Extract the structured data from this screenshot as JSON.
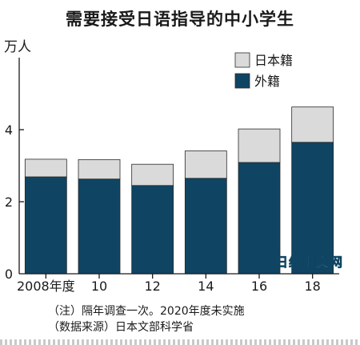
{
  "chart_data": {
    "type": "bar",
    "stacked": true,
    "title": "需要接受日语指导的中小学生",
    "ylabel": "万人",
    "xlabel": "",
    "ylim": [
      0,
      6
    ],
    "yticks": [
      0,
      2,
      4
    ],
    "categories": [
      "2008年度",
      "10",
      "12",
      "14",
      "16",
      "18"
    ],
    "series": [
      {
        "name": "外籍",
        "color": "#0f4563",
        "values": [
          2.69,
          2.63,
          2.45,
          2.65,
          3.09,
          3.65
        ]
      },
      {
        "name": "日本籍",
        "color": "#dadada",
        "values": [
          0.49,
          0.54,
          0.59,
          0.76,
          0.93,
          0.98
        ]
      }
    ],
    "legend": {
      "placement": "top-right",
      "order": [
        "日本籍",
        "外籍"
      ]
    }
  },
  "notes": {
    "line1": "（注）隔年调查一次。2020年度未实施",
    "line2": "（数据来源）日本文部科学省"
  },
  "watermark": "日经中文网"
}
